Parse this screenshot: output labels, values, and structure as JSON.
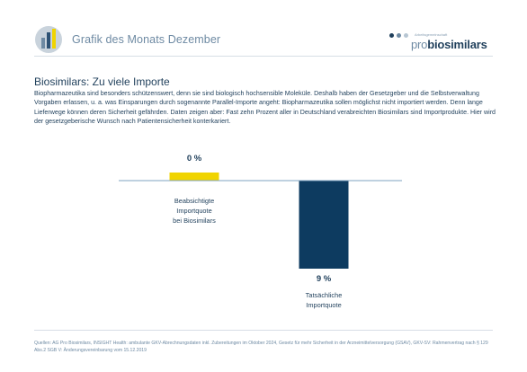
{
  "header": {
    "title": "Grafik des Monats Dezember",
    "brand_tagline": "Arbeitsgemeinschaft",
    "brand_pro": "pro",
    "brand_bio": "biosimilars"
  },
  "colors": {
    "navy": "#0d3b60",
    "yellow": "#f0d400",
    "baseline": "#7fa3c0",
    "muted": "#6e8aa3"
  },
  "heading": "Biosimilars: Zu viele Importe",
  "intro": "Biopharmazeutika sind besonders schützenswert, denn sie sind biologisch hochsensible Moleküle. Deshalb haben der Gesetzgeber und die Selbstverwaltung Vorgaben erlassen, u. a. was Einsparungen durch sogenannte Parallel-Importe angeht: Biopharmazeutika sollen möglichst nicht importiert werden. Denn lange Lieferwege können deren Sicherheit gefährden. Daten zeigen aber: Fast zehn Prozent aller in Deutschland verabreichten Biosimilars sind Importprodukte. Hier wird der gesetzgeberische Wunsch nach Patientensicherheit konterkariert.",
  "chart_data": {
    "type": "bar",
    "categories": [
      "Beabsichtigte Importquote bei Biosimilars",
      "Tatsächliche Importquote"
    ],
    "category_lines": [
      [
        "Beabsichtigte",
        "Importquote",
        "bei Biosimilars"
      ],
      [
        "Tatsächliche",
        "Importquote"
      ]
    ],
    "values": [
      0,
      9
    ],
    "value_labels": [
      "0 %",
      "9 %"
    ],
    "unit": "%",
    "direction": "downward",
    "ylim": [
      0,
      9
    ],
    "grid": false,
    "legend": "none"
  },
  "footer": "Quellen: AG Pro Biosimilars, INSIGHT Health: ambulante GKV-Abrechnungsdaten inkl. Zubereitungen im Oktober 2024, Gesetz für mehr Sicherheit in der Arzneimittelversorgung (GSAV), GKV-SV: Rahmenvertrag nach § 129 Abs.2 SGB V: Änderungsvereinbarung vom 15.12.2019"
}
